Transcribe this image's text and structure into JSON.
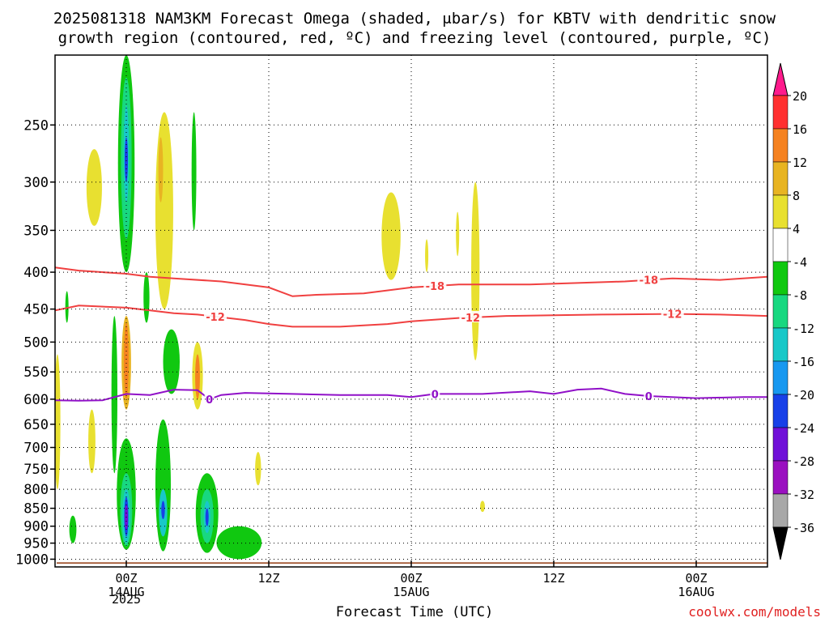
{
  "title_line1": "2025081318 NAM3KM Forecast Omega (shaded, μbar/s) for KBTV with dendritic snow",
  "title_line2": "growth region (contoured, red, ºC) and freezing level (contoured, purple, ºC)",
  "xlabel": "Forecast Time (UTC)",
  "credit": "coolwx.com/models",
  "chart_data": {
    "type": "heatmap",
    "xlabel": "Forecast Time (UTC)",
    "ylabel": "",
    "xlim": [
      -6,
      54
    ],
    "ylim": [
      1025,
      200
    ],
    "y_scale": "log",
    "y_ticks": [
      250,
      300,
      350,
      400,
      450,
      500,
      550,
      600,
      650,
      700,
      750,
      800,
      850,
      900,
      950,
      1000
    ],
    "x_ticks": [
      {
        "x": 0,
        "label": "00Z",
        "sub": "14AUG",
        "sub2": "2025"
      },
      {
        "x": 12,
        "label": "12Z",
        "sub": "",
        "sub2": ""
      },
      {
        "x": 24,
        "label": "00Z",
        "sub": "15AUG",
        "sub2": ""
      },
      {
        "x": 36,
        "label": "12Z",
        "sub": "",
        "sub2": ""
      },
      {
        "x": 48,
        "label": "00Z",
        "sub": "16AUG",
        "sub2": ""
      }
    ],
    "grid": true,
    "colorbar": {
      "unit": "μbar/s",
      "levels": [
        20,
        16,
        12,
        8,
        4,
        -4,
        -8,
        -12,
        -16,
        -20,
        -24,
        -28,
        -32,
        -36
      ],
      "colors": [
        "#ff1a8c",
        "#ff3030",
        "#f58220",
        "#e8b422",
        "#e8e030",
        "#ffffff",
        "#10c810",
        "#18d880",
        "#18c8c8",
        "#1898f0",
        "#1840e8",
        "#7010d8",
        "#9a10c0",
        "#a8a8a8",
        "#000000"
      ]
    },
    "contours": [
      {
        "name": "-18",
        "color": "#f04040",
        "labels_at": [
          26,
          44
        ],
        "points": [
          [
            -6,
            394
          ],
          [
            -4,
            398
          ],
          [
            0,
            402
          ],
          [
            2,
            406
          ],
          [
            4,
            408
          ],
          [
            8,
            412
          ],
          [
            12,
            420
          ],
          [
            14,
            432
          ],
          [
            16,
            430
          ],
          [
            20,
            428
          ],
          [
            24,
            420
          ],
          [
            28,
            416
          ],
          [
            34,
            416
          ],
          [
            38,
            414
          ],
          [
            42,
            412
          ],
          [
            46,
            408
          ],
          [
            50,
            410
          ],
          [
            54,
            406
          ]
        ]
      },
      {
        "name": "-12",
        "color": "#f04040",
        "labels_at": [
          7.5,
          29,
          46
        ],
        "points": [
          [
            -6,
            452
          ],
          [
            -4,
            445
          ],
          [
            0,
            448
          ],
          [
            2,
            452
          ],
          [
            4,
            456
          ],
          [
            6,
            458
          ],
          [
            10,
            466
          ],
          [
            12,
            472
          ],
          [
            14,
            476
          ],
          [
            18,
            476
          ],
          [
            22,
            472
          ],
          [
            24,
            468
          ],
          [
            28,
            463
          ],
          [
            32,
            460
          ],
          [
            36,
            459
          ],
          [
            40,
            458
          ],
          [
            46,
            457
          ],
          [
            50,
            458
          ],
          [
            54,
            460
          ]
        ]
      },
      {
        "name": "0",
        "color": "#9010c8",
        "labels_at": [
          7,
          26,
          44
        ],
        "points": [
          [
            -6,
            602
          ],
          [
            -4,
            603
          ],
          [
            -2,
            602
          ],
          [
            0,
            590
          ],
          [
            2,
            592
          ],
          [
            4,
            582
          ],
          [
            6,
            583
          ],
          [
            7,
            600
          ],
          [
            8,
            592
          ],
          [
            10,
            588
          ],
          [
            14,
            590
          ],
          [
            18,
            592
          ],
          [
            22,
            592
          ],
          [
            24,
            596
          ],
          [
            26,
            590
          ],
          [
            30,
            590
          ],
          [
            34,
            585
          ],
          [
            36,
            590
          ],
          [
            38,
            582
          ],
          [
            40,
            580
          ],
          [
            42,
            590
          ],
          [
            44,
            594
          ],
          [
            48,
            598
          ],
          [
            52,
            596
          ],
          [
            54,
            596
          ]
        ]
      }
    ],
    "omega_blobs": [
      {
        "x": 0.0,
        "p_top": 200,
        "p_bot": 400,
        "w": 1.4,
        "value": -8
      },
      {
        "x": 0.0,
        "p_top": 215,
        "p_bot": 360,
        "w": 0.9,
        "value": -12
      },
      {
        "x": 0.0,
        "p_top": 235,
        "p_bot": 320,
        "w": 0.45,
        "value": -16
      },
      {
        "x": 0.0,
        "p_top": 260,
        "p_bot": 300,
        "w": 0.2,
        "value": -24
      },
      {
        "x": -2.7,
        "p_top": 270,
        "p_bot": 345,
        "w": 1.3,
        "value": 4
      },
      {
        "x": 3.2,
        "p_top": 240,
        "p_bot": 450,
        "w": 1.5,
        "value": 4
      },
      {
        "x": 2.9,
        "p_top": 260,
        "p_bot": 320,
        "w": 0.4,
        "value": 8
      },
      {
        "x": 5.7,
        "p_top": 240,
        "p_bot": 350,
        "w": 0.4,
        "value": -8
      },
      {
        "x": 1.7,
        "p_top": 400,
        "p_bot": 470,
        "w": 0.5,
        "value": -8
      },
      {
        "x": -5.0,
        "p_top": 425,
        "p_bot": 470,
        "w": 0.25,
        "value": -8
      },
      {
        "x": -5.8,
        "p_top": 520,
        "p_bot": 800,
        "w": 0.5,
        "value": 4
      },
      {
        "x": 0.0,
        "p_top": 460,
        "p_bot": 620,
        "w": 0.8,
        "value": 8
      },
      {
        "x": 0.0,
        "p_top": 470,
        "p_bot": 600,
        "w": 0.4,
        "value": 12
      },
      {
        "x": -1.0,
        "p_top": 460,
        "p_bot": 760,
        "w": 0.5,
        "value": -8
      },
      {
        "x": -2.9,
        "p_top": 620,
        "p_bot": 760,
        "w": 0.6,
        "value": 4
      },
      {
        "x": -4.5,
        "p_top": 870,
        "p_bot": 950,
        "w": 0.6,
        "value": -8
      },
      {
        "x": 3.8,
        "p_top": 480,
        "p_bot": 590,
        "w": 1.4,
        "value": -8
      },
      {
        "x": 6.0,
        "p_top": 500,
        "p_bot": 620,
        "w": 0.9,
        "value": 4
      },
      {
        "x": 6.0,
        "p_top": 520,
        "p_bot": 600,
        "w": 0.4,
        "value": 12
      },
      {
        "x": 0.0,
        "p_top": 680,
        "p_bot": 970,
        "w": 1.6,
        "value": -8
      },
      {
        "x": 0.0,
        "p_top": 760,
        "p_bot": 960,
        "w": 1.0,
        "value": -12
      },
      {
        "x": 0.0,
        "p_top": 800,
        "p_bot": 950,
        "w": 0.65,
        "value": -16
      },
      {
        "x": 0.0,
        "p_top": 820,
        "p_bot": 930,
        "w": 0.35,
        "value": -24
      },
      {
        "x": 0.0,
        "p_top": 840,
        "p_bot": 910,
        "w": 0.18,
        "value": -28
      },
      {
        "x": 3.1,
        "p_top": 640,
        "p_bot": 975,
        "w": 1.3,
        "value": -8
      },
      {
        "x": 3.1,
        "p_top": 800,
        "p_bot": 930,
        "w": 0.7,
        "value": -16
      },
      {
        "x": 3.1,
        "p_top": 830,
        "p_bot": 880,
        "w": 0.3,
        "value": -24
      },
      {
        "x": 6.8,
        "p_top": 760,
        "p_bot": 980,
        "w": 1.9,
        "value": -8
      },
      {
        "x": 6.8,
        "p_top": 800,
        "p_bot": 950,
        "w": 1.1,
        "value": -12
      },
      {
        "x": 6.8,
        "p_top": 830,
        "p_bot": 920,
        "w": 0.55,
        "value": -16
      },
      {
        "x": 6.8,
        "p_top": 850,
        "p_bot": 900,
        "w": 0.25,
        "value": -24
      },
      {
        "x": 9.5,
        "p_top": 900,
        "p_bot": 1000,
        "w": 3.8,
        "value": -8
      },
      {
        "x": 11.1,
        "p_top": 710,
        "p_bot": 790,
        "w": 0.5,
        "value": 4
      },
      {
        "x": 22.3,
        "p_top": 310,
        "p_bot": 410,
        "w": 1.6,
        "value": 4
      },
      {
        "x": 25.3,
        "p_top": 360,
        "p_bot": 400,
        "w": 0.25,
        "value": 4
      },
      {
        "x": 27.9,
        "p_top": 330,
        "p_bot": 380,
        "w": 0.25,
        "value": 4
      },
      {
        "x": 29.4,
        "p_top": 300,
        "p_bot": 530,
        "w": 0.7,
        "value": 4
      },
      {
        "x": 30.0,
        "p_top": 830,
        "p_bot": 860,
        "w": 0.4,
        "value": 4
      }
    ],
    "terrain_top_hpa": 1010
  }
}
